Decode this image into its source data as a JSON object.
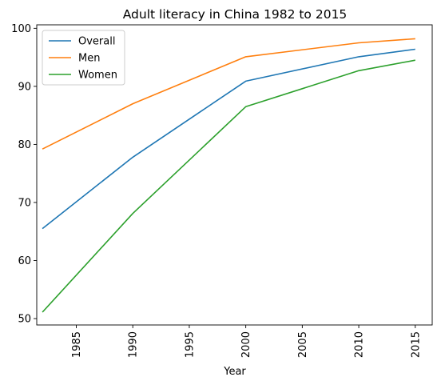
{
  "chart_data": {
    "type": "line",
    "title": "Adult literacy in China 1982 to 2015",
    "xlabel": "Year",
    "ylabel": "",
    "xlim": [
      1981.5,
      2016.5
    ],
    "ylim": [
      48.9,
      100.6
    ],
    "xticks": [
      1985,
      1990,
      1995,
      2000,
      2005,
      2010,
      2015
    ],
    "yticks": [
      50,
      60,
      70,
      80,
      90,
      100
    ],
    "x": [
      1982,
      1990,
      2000,
      2010,
      2015
    ],
    "series": [
      {
        "name": "Overall",
        "color": "#1f77b4",
        "values": [
          65.5,
          77.8,
          90.9,
          95.1,
          96.4
        ]
      },
      {
        "name": "Men",
        "color": "#ff7f0e",
        "values": [
          79.2,
          87.0,
          95.1,
          97.5,
          98.2
        ]
      },
      {
        "name": "Women",
        "color": "#2ca02c",
        "values": [
          51.1,
          68.1,
          86.5,
          92.7,
          94.5
        ]
      }
    ],
    "legend": "top-left",
    "grid": false
  }
}
